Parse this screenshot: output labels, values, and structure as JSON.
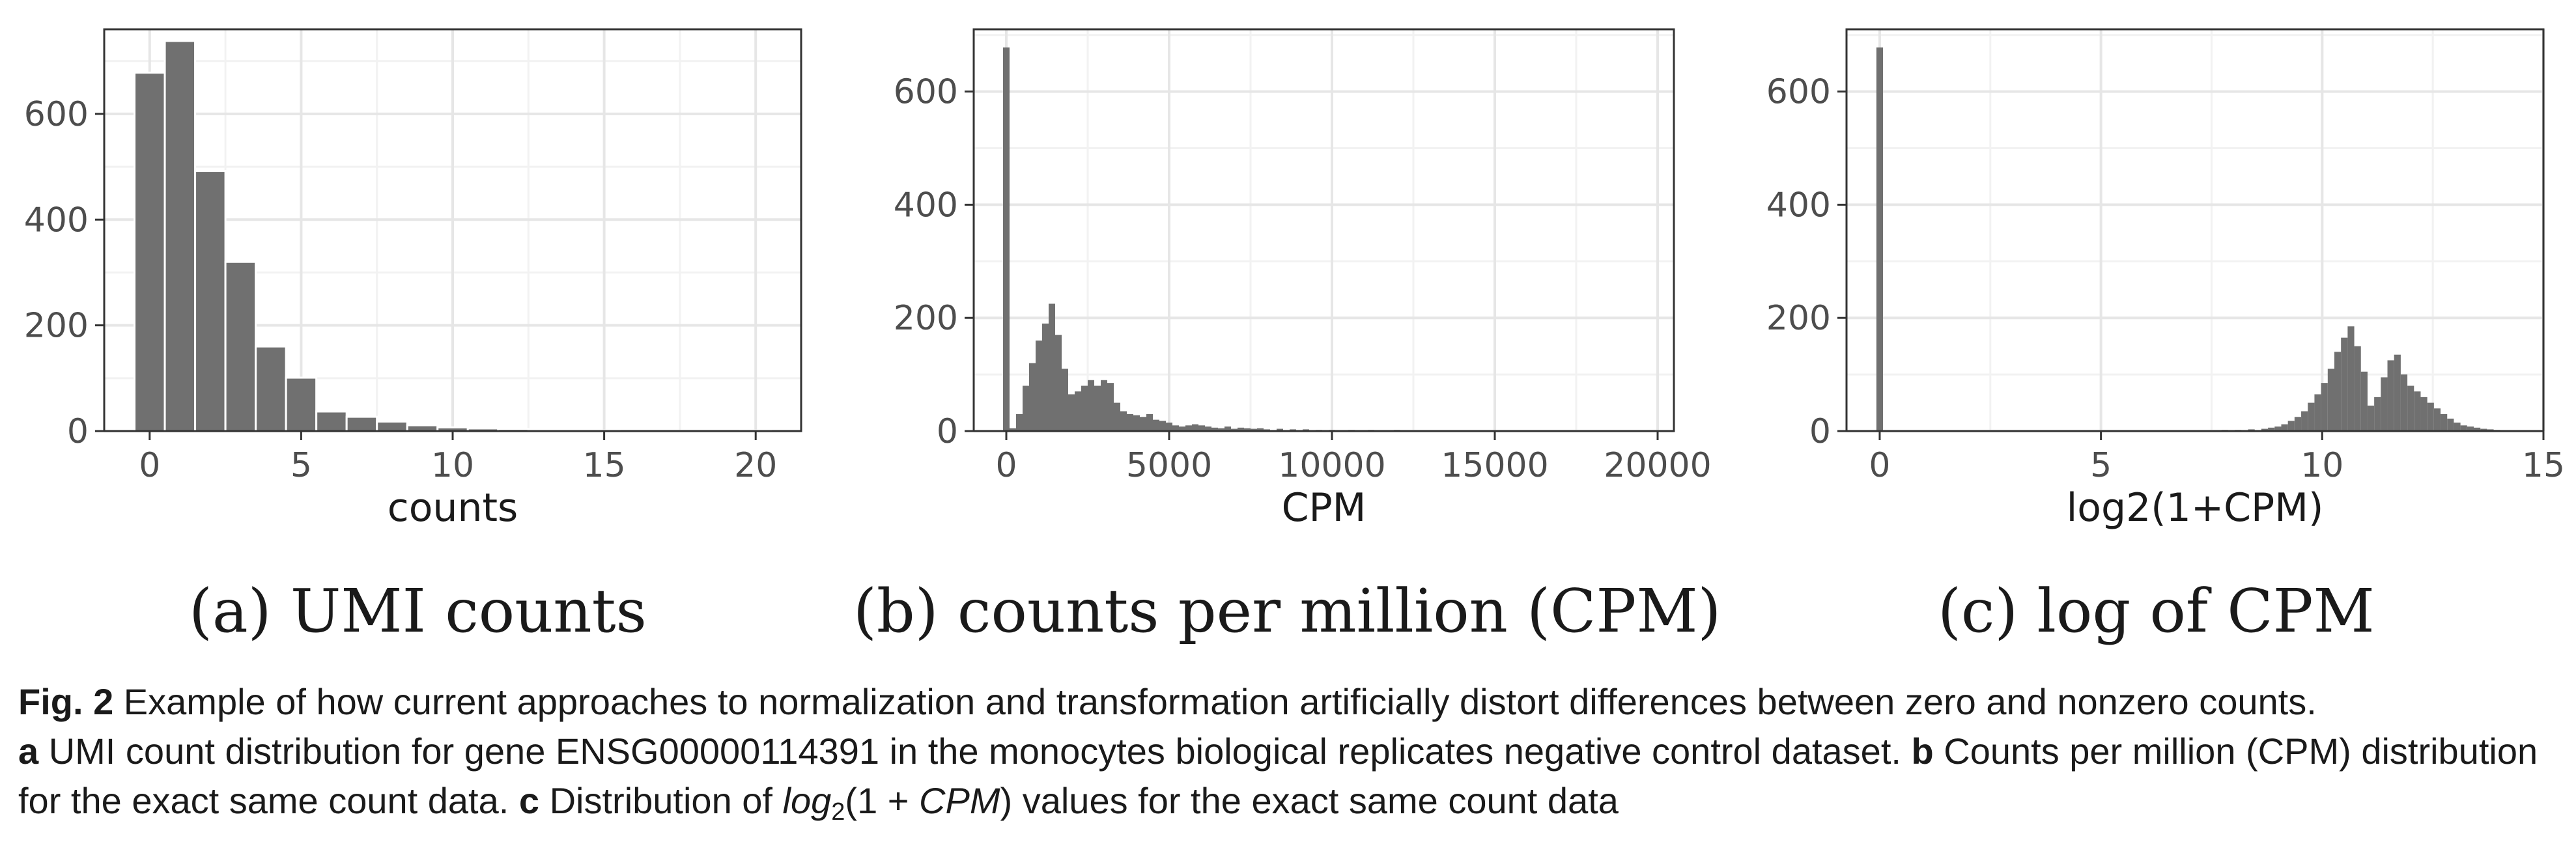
{
  "panels": [
    {
      "id": "a",
      "subcaption": "(a) UMI counts"
    },
    {
      "id": "b",
      "subcaption": "(b) counts per million (CPM)"
    },
    {
      "id": "c",
      "subcaption": "(c) log of CPM"
    }
  ],
  "caption": {
    "fig_label": "Fig. 2",
    "fig_text": " Example of how current approaches to normalization and transformation artificially distort differences between zero and nonzero counts.",
    "a_label": "a",
    "a_text": " UMI count distribution for gene ENSG00000114391 in the monocytes biological replicates negative control dataset. ",
    "b_label": "b",
    "b_text": " Counts per million (CPM) distribution for the exact same count data. ",
    "c_label": "c",
    "c_text_pre": " Distribution of ",
    "c_math_log": "log",
    "c_math_sub": "2",
    "c_math_paren": "(1 + ",
    "c_math_cpm": "CPM",
    "c_math_close": ")",
    "c_text_post": " values for the exact same count data"
  },
  "chart_data": [
    {
      "type": "bar",
      "title": "",
      "xlabel": "counts",
      "ylabel": "",
      "xlim": [
        -1.5,
        21.5
      ],
      "ylim": [
        0,
        760
      ],
      "xticks": [
        0,
        5,
        10,
        15,
        20
      ],
      "yticks": [
        0,
        200,
        400,
        600
      ],
      "grid": true,
      "bar_color": "#707070",
      "x": [
        0,
        1,
        2,
        3,
        4,
        5,
        6,
        7,
        8,
        9,
        10,
        11,
        12,
        13,
        14,
        15,
        16,
        17,
        18,
        19,
        20
      ],
      "values": [
        678,
        738,
        492,
        320,
        160,
        101,
        37,
        27,
        18,
        11,
        7,
        5,
        4,
        2,
        2,
        1,
        0,
        0,
        0,
        0,
        1
      ]
    },
    {
      "type": "bar",
      "title": "",
      "xlabel": "CPM",
      "ylabel": "",
      "xlim": [
        -1000,
        20500
      ],
      "ylim": [
        0,
        710
      ],
      "xticks": [
        0,
        5000,
        10000,
        15000,
        20000
      ],
      "yticks": [
        0,
        200,
        400,
        600
      ],
      "grid": true,
      "bar_color": "#707070",
      "bin_width": 200,
      "x": [
        0,
        200,
        400,
        600,
        800,
        1000,
        1200,
        1400,
        1600,
        1800,
        2000,
        2200,
        2400,
        2600,
        2800,
        3000,
        3200,
        3400,
        3600,
        3800,
        4000,
        4200,
        4400,
        4600,
        4800,
        5000,
        5200,
        5400,
        5600,
        5800,
        6000,
        6200,
        6400,
        6600,
        6800,
        7000,
        7200,
        7400,
        7600,
        7800,
        8000,
        8400,
        8800,
        9200,
        9600,
        10000,
        10600,
        11200,
        12000,
        13000,
        14200,
        15600,
        17400,
        19400
      ],
      "values": [
        678,
        5,
        30,
        80,
        120,
        160,
        190,
        225,
        170,
        110,
        65,
        70,
        80,
        90,
        80,
        90,
        85,
        50,
        35,
        30,
        28,
        25,
        30,
        20,
        18,
        15,
        10,
        8,
        10,
        12,
        10,
        8,
        6,
        5,
        8,
        4,
        6,
        5,
        4,
        5,
        3,
        4,
        3,
        3,
        2,
        2,
        2,
        2,
        2,
        1,
        1,
        1,
        1,
        1
      ]
    },
    {
      "type": "bar",
      "title": "",
      "xlabel": "log2(1+CPM)",
      "ylabel": "",
      "xlim": [
        -0.75,
        15
      ],
      "ylim": [
        0,
        710
      ],
      "xticks": [
        0,
        5,
        10,
        15
      ],
      "yticks": [
        0,
        200,
        400,
        600
      ],
      "grid": true,
      "bar_color": "#707070",
      "bin_width": 0.15,
      "x": [
        0,
        7.2,
        7.5,
        7.8,
        8.1,
        8.4,
        8.7,
        8.85,
        9.0,
        9.15,
        9.3,
        9.45,
        9.6,
        9.75,
        9.9,
        10.05,
        10.2,
        10.35,
        10.5,
        10.65,
        10.8,
        10.95,
        11.1,
        11.25,
        11.4,
        11.55,
        11.7,
        11.85,
        12.0,
        12.15,
        12.3,
        12.45,
        12.6,
        12.75,
        12.9,
        13.05,
        13.2,
        13.35,
        13.5,
        13.65,
        13.8,
        13.95,
        14.1,
        14.25
      ],
      "values": [
        678,
        1,
        1,
        2,
        2,
        3,
        4,
        6,
        8,
        12,
        18,
        25,
        35,
        50,
        65,
        85,
        110,
        140,
        165,
        185,
        150,
        105,
        45,
        60,
        95,
        125,
        135,
        100,
        80,
        70,
        60,
        50,
        40,
        30,
        22,
        15,
        10,
        8,
        6,
        4,
        3,
        2,
        1,
        1
      ]
    }
  ]
}
